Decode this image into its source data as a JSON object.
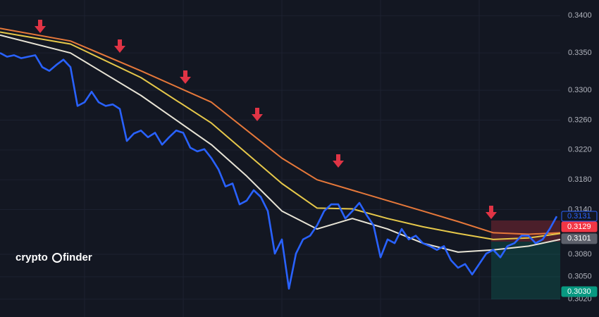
{
  "chart_data": {
    "type": "line",
    "brand": [
      "crypto",
      "finder"
    ],
    "ylim": [
      0.2996,
      0.3421
    ],
    "yticks": [
      {
        "value": 0.34,
        "label": "0.3400"
      },
      {
        "value": 0.335,
        "label": "0.3350"
      },
      {
        "value": 0.33,
        "label": "0.3300"
      },
      {
        "value": 0.326,
        "label": "0.3260"
      },
      {
        "value": 0.322,
        "label": "0.3220"
      },
      {
        "value": 0.318,
        "label": "0.3180"
      },
      {
        "value": 0.314,
        "label": "0.3140"
      },
      {
        "value": 0.308,
        "label": "0.3080"
      },
      {
        "value": 0.305,
        "label": "0.3050"
      },
      {
        "value": 0.302,
        "label": "0.3020"
      }
    ],
    "grid": true,
    "series": [
      {
        "color": "#e6783a",
        "width": 2,
        "x": [
          0,
          100,
          200,
          300,
          400,
          450,
          500,
          550,
          600,
          650,
          700,
          750,
          795
        ],
        "values": [
          0.3383,
          0.3366,
          0.3326,
          0.3284,
          0.3209,
          0.318,
          0.3166,
          0.3152,
          0.3138,
          0.3124,
          0.3109,
          0.3107,
          0.3109
        ]
      },
      {
        "color": "#e6c84a",
        "width": 2,
        "x": [
          0,
          100,
          200,
          300,
          400,
          450,
          500,
          550,
          600,
          650,
          700,
          750,
          795
        ],
        "values": [
          0.3378,
          0.3362,
          0.3317,
          0.3256,
          0.3175,
          0.3142,
          0.3141,
          0.3128,
          0.3117,
          0.3108,
          0.31,
          0.3102,
          0.3108
        ]
      },
      {
        "color": "#e8e4d6",
        "width": 2,
        "x": [
          0,
          100,
          200,
          300,
          350,
          400,
          450,
          500,
          550,
          600,
          650,
          700,
          750,
          795
        ],
        "values": [
          0.3374,
          0.335,
          0.3293,
          0.3227,
          0.3185,
          0.3138,
          0.3114,
          0.3128,
          0.3114,
          0.3095,
          0.3083,
          0.3086,
          0.3091,
          0.31
        ]
      },
      {
        "color": "#2962ff",
        "width": 2.6,
        "x": [
          0,
          10,
          20,
          30,
          40,
          50,
          60,
          70,
          80,
          90,
          100,
          110,
          120,
          130,
          140,
          150,
          160,
          170,
          180,
          190,
          200,
          210,
          220,
          230,
          240,
          250,
          260,
          270,
          280,
          290,
          300,
          310,
          320,
          330,
          340,
          350,
          360,
          370,
          380,
          390,
          400,
          410,
          420,
          430,
          440,
          450,
          460,
          470,
          480,
          490,
          500,
          510,
          520,
          530,
          540,
          550,
          560,
          570,
          580,
          590,
          600,
          610,
          620,
          630,
          640,
          650,
          660,
          670,
          680,
          690,
          700,
          710,
          720,
          730,
          740,
          750,
          760,
          770,
          780,
          790
        ],
        "values": [
          0.335,
          0.3345,
          0.3347,
          0.3343,
          0.3345,
          0.3347,
          0.3331,
          0.3326,
          0.3334,
          0.3341,
          0.3331,
          0.3279,
          0.3284,
          0.3298,
          0.3284,
          0.3279,
          0.3281,
          0.3275,
          0.3232,
          0.3242,
          0.3246,
          0.3237,
          0.3243,
          0.3227,
          0.3237,
          0.3246,
          0.3243,
          0.3223,
          0.3218,
          0.3221,
          0.3209,
          0.3194,
          0.3171,
          0.3175,
          0.3147,
          0.3152,
          0.3166,
          0.3157,
          0.3138,
          0.3081,
          0.31,
          0.3034,
          0.3081,
          0.31,
          0.3105,
          0.3119,
          0.3138,
          0.3147,
          0.3147,
          0.3128,
          0.3138,
          0.3149,
          0.3133,
          0.3119,
          0.3076,
          0.31,
          0.3095,
          0.3114,
          0.31,
          0.3105,
          0.3095,
          0.3091,
          0.3086,
          0.3091,
          0.3072,
          0.3062,
          0.3067,
          0.3053,
          0.3067,
          0.3081,
          0.3086,
          0.3076,
          0.3091,
          0.3095,
          0.3105,
          0.3105,
          0.3095,
          0.31,
          0.3114,
          0.3131
        ]
      }
    ],
    "price_labels": [
      {
        "value": 0.3131,
        "label": "0.3131",
        "color": "#131722",
        "border": "#2962ff",
        "text": "#2962ff"
      },
      {
        "value": 0.3129,
        "label": "0.3129",
        "color": "#f23645",
        "border": "#f23645",
        "text": "#ffffff"
      },
      {
        "value": 0.3101,
        "label": "0.3101",
        "color": "#5d606b",
        "border": "#5d606b",
        "text": "#ffffff"
      },
      {
        "value": 0.303,
        "label": "0.3030",
        "color": "#089981",
        "border": "#089981",
        "text": "#ffffff"
      }
    ]
  }
}
